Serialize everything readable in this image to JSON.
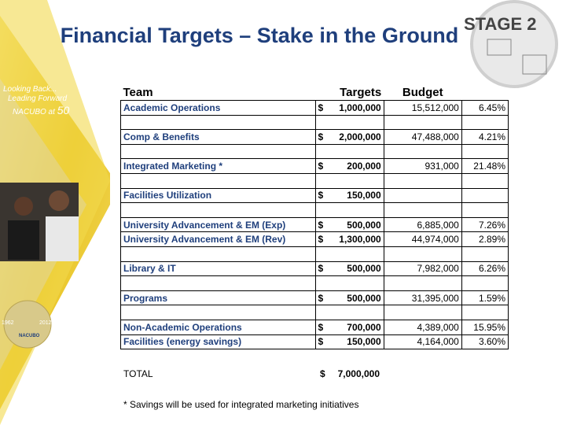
{
  "slide": {
    "title": "Financial Targets – Stake in the Ground",
    "stage": "STAGE 2",
    "sidebar": {
      "line1": "Looking Back...",
      "line2": "Leading Forward",
      "line3": "NACUBO at",
      "line3b": "50",
      "year_start": "1962",
      "year_end": "2012",
      "logo": "NACUBO"
    },
    "table": {
      "header": [
        "Team",
        "Targets",
        "Budget"
      ],
      "currency": "$",
      "rows": [
        [
          "Academic Operations",
          "1,000,000",
          "15,512,000",
          "6.45%"
        ],
        null,
        [
          "Comp & Benefits",
          "2,000,000",
          "47,488,000",
          "4.21%"
        ],
        null,
        [
          "Integrated Marketing *",
          "200,000",
          "931,000",
          "21.48%"
        ],
        null,
        [
          "Facilities Utilization",
          "150,000",
          null,
          null
        ],
        null,
        [
          "University Advancement & EM (Exp)",
          "500,000",
          "6,885,000",
          "7.26%"
        ],
        [
          "University Advancement & EM (Rev)",
          "1,300,000",
          "44,974,000",
          "2.89%"
        ],
        null,
        [
          "Library & IT",
          "500,000",
          "7,982,000",
          "6.26%"
        ],
        null,
        [
          "Programs",
          "500,000",
          "31,395,000",
          "1.59%"
        ],
        null,
        [
          "Non-Academic  Operations",
          "700,000",
          "4,389,000",
          "15.95%"
        ],
        [
          "Facilities (energy savings)",
          "150,000",
          "4,164,000",
          "3.60%"
        ]
      ],
      "total": {
        "label": "TOTAL",
        "value": "7,000,000"
      }
    },
    "footnote": "* Savings will be used for integrated marketing initiatives"
  }
}
